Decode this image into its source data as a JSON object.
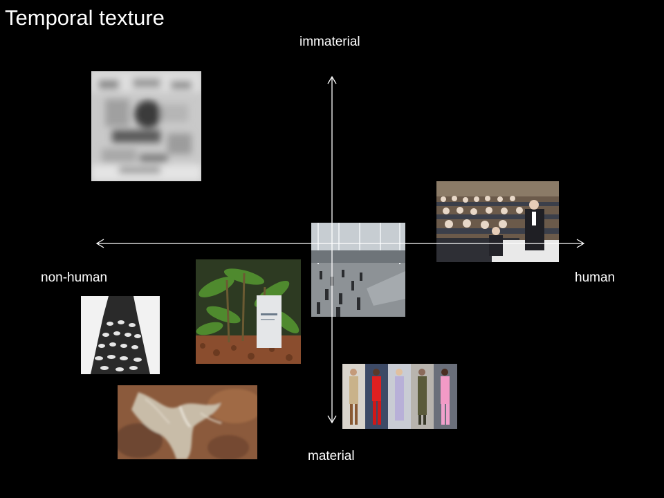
{
  "slide": {
    "title": "Temporal texture"
  },
  "axes": {
    "top_label": "immaterial",
    "bottom_label": "material",
    "left_label": "non-human",
    "right_label": "human"
  },
  "images": [
    {
      "name": "blurry-pixel-texture",
      "position": "upper-left"
    },
    {
      "name": "lecture-hall-photo",
      "position": "right"
    },
    {
      "name": "crowded-atrium-photo",
      "position": "center"
    },
    {
      "name": "plants-with-sign-photo",
      "position": "lower-left"
    },
    {
      "name": "feathered-dress-photo",
      "position": "far-left"
    },
    {
      "name": "runway-models-photo",
      "position": "bottom-center"
    },
    {
      "name": "aerial-landscape-photo",
      "position": "bottom-left"
    }
  ],
  "colors": {
    "background": "#000000",
    "text": "#ffffff",
    "axis": "#ffffff"
  }
}
